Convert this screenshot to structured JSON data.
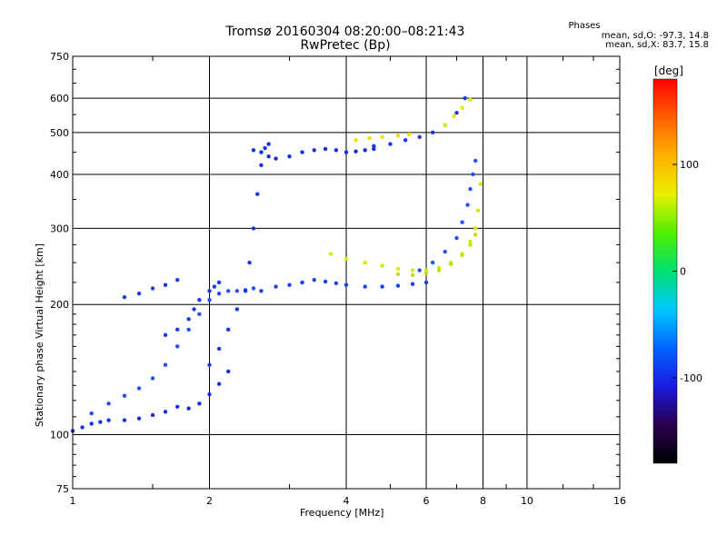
{
  "header": {
    "title": "Tromsø 20160304 08:20:00–08:21:43",
    "subtitle": "RwPretec (Bp)"
  },
  "info": {
    "heading": "Phases",
    "line_o": "mean, sd,O: -97.3, 14.8",
    "line_x": "mean, sd,X: 83.7, 15.8"
  },
  "colorbar": {
    "label": "[deg]",
    "min": -180,
    "max": 180,
    "ticks": [
      100,
      0,
      -100
    ],
    "stops": [
      "#000000",
      "#2a0050",
      "#1a1ae0",
      "#0064ff",
      "#00c8ff",
      "#00e070",
      "#50f000",
      "#e8f000",
      "#ffb000",
      "#ff6000",
      "#ff0000"
    ]
  },
  "chart_data": {
    "type": "scatter",
    "xlabel": "Frequency [MHz]",
    "ylabel": "Stationary phase Virtual Height [km]",
    "xscale": "log",
    "yscale": "log",
    "xlim": [
      1,
      16
    ],
    "ylim": [
      75,
      750
    ],
    "xticks": [
      1,
      2,
      4,
      6,
      8,
      10,
      16
    ],
    "yticks": [
      75,
      100,
      200,
      300,
      400,
      500,
      600,
      750
    ],
    "xgrid": [
      1,
      2,
      4,
      6,
      8,
      10,
      16
    ],
    "ygrid": [
      100,
      200,
      300,
      400,
      500,
      600
    ],
    "series": [
      {
        "name": "",
        "color": "#1530e0",
        "x": [
          1.0,
          1.05,
          1.1,
          1.15,
          1.2,
          1.3,
          1.4,
          1.5,
          1.6,
          1.7,
          1.8,
          1.9,
          2.0,
          2.1,
          2.2
        ],
        "y": [
          102,
          104,
          106,
          107,
          108,
          108,
          109,
          111,
          113,
          116,
          115,
          118,
          124,
          131,
          140
        ]
      },
      {
        "name": "",
        "color": "#2450f0",
        "x": [
          1.1,
          1.2,
          1.3,
          1.4,
          1.5,
          1.6,
          1.7,
          1.8,
          1.9,
          2.0,
          2.1,
          2.2,
          2.3,
          2.4,
          2.5
        ],
        "y": [
          112,
          118,
          123,
          128,
          135,
          145,
          160,
          175,
          190,
          205,
          212,
          215,
          215,
          216,
          218
        ]
      },
      {
        "name": "",
        "color": "#1838e8",
        "x": [
          2.0,
          2.1,
          2.2,
          2.3,
          2.4,
          2.45,
          2.5,
          2.55,
          2.6,
          2.65,
          2.7
        ],
        "y": [
          145,
          158,
          175,
          195,
          215,
          250,
          300,
          360,
          420,
          460,
          470
        ]
      },
      {
        "name": "",
        "color": "#1530d0",
        "x": [
          2.5,
          2.6,
          2.7,
          2.8,
          3.0,
          3.2,
          3.4,
          3.6,
          3.8,
          4.0,
          4.2,
          4.4,
          4.6
        ],
        "y": [
          455,
          450,
          440,
          435,
          440,
          450,
          455,
          458,
          455,
          450,
          452,
          455,
          458
        ]
      },
      {
        "name": "",
        "color": "#1a40e8",
        "x": [
          2.6,
          2.8,
          3.0,
          3.2,
          3.4,
          3.6,
          3.8,
          4.0,
          4.4,
          4.8,
          5.2,
          5.6,
          6.0
        ],
        "y": [
          215,
          220,
          222,
          225,
          228,
          226,
          224,
          222,
          220,
          220,
          221,
          223,
          225
        ]
      },
      {
        "name": "",
        "color": "#2850f0",
        "x": [
          5.8,
          6.2,
          6.6,
          7.0,
          7.2,
          7.4,
          7.5,
          7.6,
          7.7
        ],
        "y": [
          240,
          250,
          265,
          285,
          310,
          340,
          370,
          400,
          430
        ]
      },
      {
        "name": "",
        "color": "#d8e800",
        "x": [
          3.7,
          4.0,
          4.4,
          4.8,
          5.2,
          5.6,
          6.0,
          6.4,
          6.8,
          7.2,
          7.5,
          7.7,
          7.8,
          7.9
        ],
        "y": [
          262,
          255,
          250,
          246,
          242,
          240,
          240,
          243,
          250,
          262,
          280,
          300,
          330,
          380
        ]
      },
      {
        "name": "",
        "color": "#c0e000",
        "x": [
          5.2,
          5.6,
          6.0,
          6.4,
          6.8,
          7.2,
          7.5,
          7.7
        ],
        "y": [
          235,
          234,
          236,
          240,
          248,
          260,
          275,
          290
        ]
      },
      {
        "name": "",
        "color": "#f0e000",
        "x": [
          4.2,
          4.5,
          4.8,
          5.2,
          5.5
        ],
        "y": [
          480,
          485,
          488,
          492,
          495
        ]
      },
      {
        "name": "",
        "color": "#1838e8",
        "x": [
          4.6,
          5.0,
          5.4,
          5.8,
          6.2,
          6.6,
          7.0,
          7.3
        ],
        "y": [
          465,
          470,
          480,
          488,
          500,
          520,
          555,
          600
        ]
      },
      {
        "name": "",
        "color": "#e0e800",
        "x": [
          6.6,
          6.9,
          7.2,
          7.5
        ],
        "y": [
          520,
          545,
          570,
          595
        ]
      },
      {
        "name": "",
        "color": "#1a3ae8",
        "x": [
          1.6,
          1.7,
          1.8,
          1.85,
          1.9,
          2.0,
          2.05,
          2.1
        ],
        "y": [
          170,
          175,
          185,
          195,
          205,
          215,
          220,
          225
        ]
      },
      {
        "name": "",
        "color": "#1a3ae0",
        "x": [
          1.3,
          1.4,
          1.5,
          1.6,
          1.7
        ],
        "y": [
          208,
          212,
          218,
          222,
          228
        ]
      }
    ]
  }
}
